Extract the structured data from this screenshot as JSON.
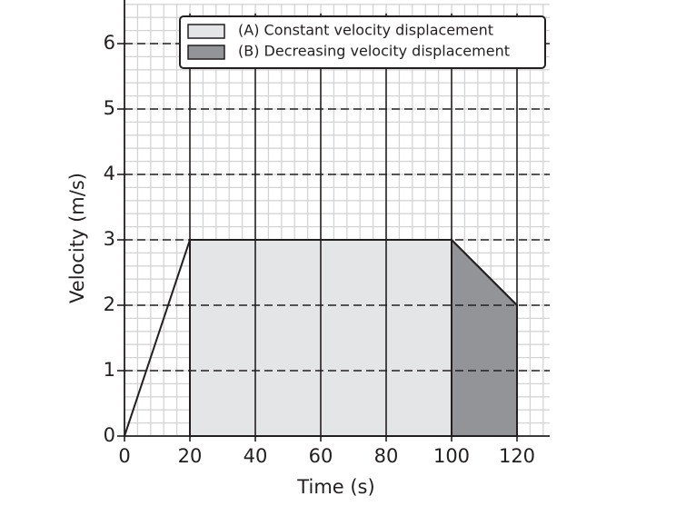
{
  "chart_data": {
    "type": "line",
    "x_label": "Time (s)",
    "y_label": "Velocity (m/s)",
    "x": [
      0,
      20,
      100,
      120
    ],
    "values": [
      0,
      3,
      3,
      2
    ],
    "color": "#231f20",
    "series": [
      {
        "name": "(A) Constant velocity displacement",
        "color": "#e4e5e7",
        "x": [
          20,
          100
        ],
        "values": [
          3,
          3
        ]
      },
      {
        "name": "(B) Decreasing velocity displacement",
        "color": "#929497",
        "x": [
          100,
          120
        ],
        "values": [
          3,
          2
        ]
      }
    ],
    "xlim": [
      0,
      130
    ],
    "ylim": [
      0,
      6.6
    ],
    "xticks": [
      0,
      20,
      40,
      60,
      80,
      100,
      120
    ],
    "yticks": [
      0,
      1,
      2,
      3,
      4,
      5,
      6
    ],
    "grid": true,
    "minor_grid": {
      "x": 4,
      "y": 0.2
    },
    "legend": "top"
  }
}
